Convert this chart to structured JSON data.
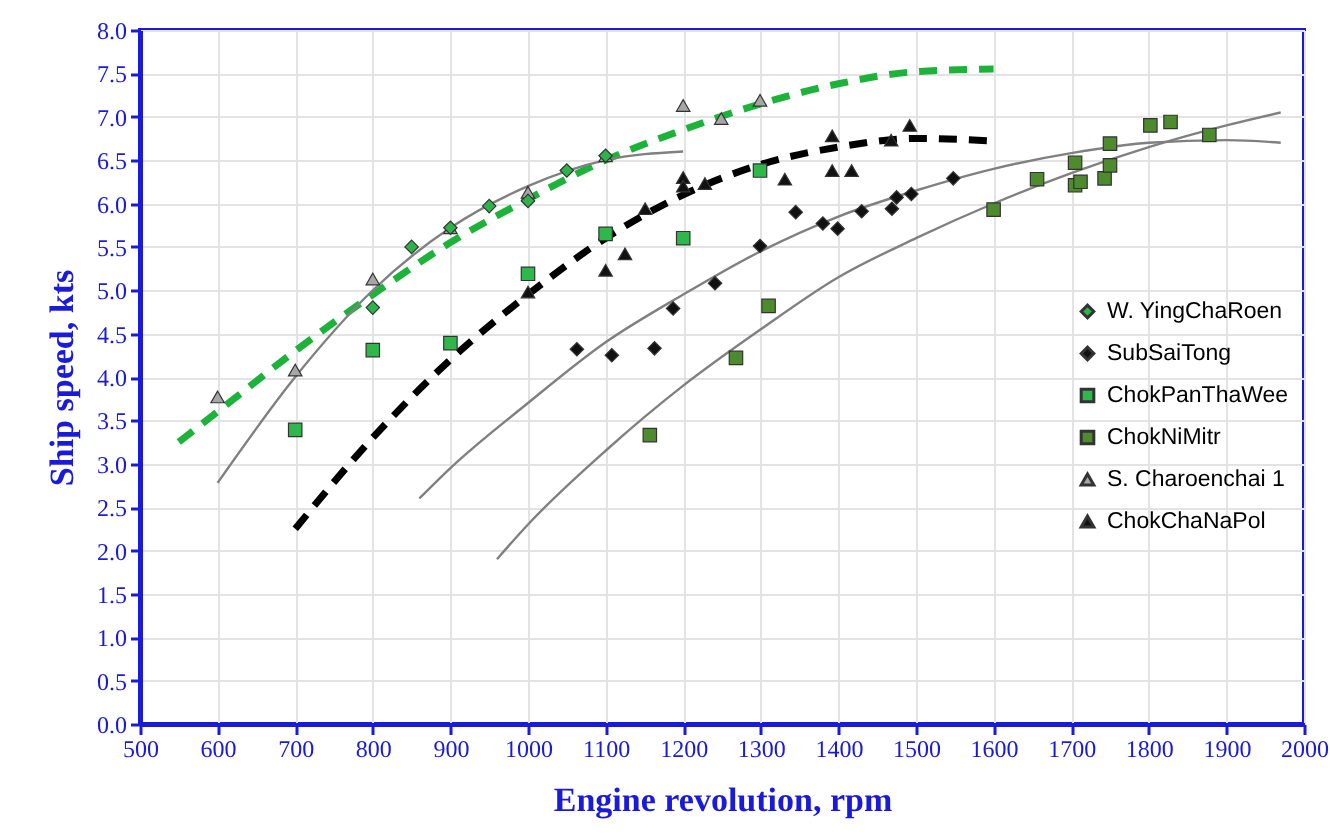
{
  "chart_data": {
    "type": "scatter",
    "xlabel": "Engine revolution, rpm",
    "ylabel": "Ship speed, kts",
    "xlim": [
      500,
      2000
    ],
    "xticks": [
      500,
      600,
      700,
      800,
      900,
      1000,
      1100,
      1200,
      1300,
      1400,
      1500,
      1600,
      1700,
      1800,
      1900,
      2000
    ],
    "ylim": [
      0,
      8
    ],
    "yticks": [
      {
        "value": 0,
        "label": "0.0"
      },
      {
        "value": 0.5,
        "label": "0.5"
      },
      {
        "value": 1,
        "label": "1.0"
      },
      {
        "value": 1.5,
        "label": "1.5"
      },
      {
        "value": 2,
        "label": "2.0"
      },
      {
        "value": 2.5,
        "label": "2.5"
      },
      {
        "value": 3,
        "label": "3.0"
      },
      {
        "value": 3.5,
        "label": "3.5"
      },
      {
        "value": 4,
        "label": "4.0"
      },
      {
        "value": 4.5,
        "label": "4.5"
      },
      {
        "value": 5,
        "label": "5.0"
      },
      {
        "value": 5.5,
        "label": "5.5"
      },
      {
        "value": 6,
        "label": "6.0"
      },
      {
        "value": 6.5,
        "label": "6.5"
      },
      {
        "value": 7,
        "label": "7.0"
      },
      {
        "value": 7.5,
        "label": "7.5"
      },
      {
        "value": 8,
        "label": "8.0"
      }
    ],
    "grid": true,
    "legend": "right",
    "series": [
      {
        "name": "W. YingChaRoen",
        "type": "scatter",
        "marker": "diamond",
        "color": "#2db34a",
        "x": [
          800,
          850,
          900,
          950,
          1000,
          1050,
          1100
        ],
        "values": [
          4.8,
          5.5,
          5.72,
          5.97,
          6.03,
          6.38,
          6.55
        ]
      },
      {
        "name": "SubSaiTong",
        "type": "scatter",
        "marker": "diamond",
        "color": "#111111",
        "x": [
          1063,
          1108,
          1163,
          1187,
          1241,
          1299,
          1345,
          1380,
          1399,
          1430,
          1469,
          1475,
          1494,
          1548
        ],
        "values": [
          4.32,
          4.25,
          4.33,
          4.79,
          5.08,
          5.51,
          5.9,
          5.77,
          5.71,
          5.91,
          5.94,
          6.07,
          6.11,
          6.29
        ]
      },
      {
        "name": "ChokPanThaWee",
        "type": "scatter",
        "marker": "square",
        "color": "#2eb84b",
        "x": [
          700,
          800,
          900,
          1000,
          1100,
          1200,
          1299
        ],
        "values": [
          3.39,
          4.31,
          4.39,
          5.19,
          5.65,
          5.6,
          6.38
        ]
      },
      {
        "name": "ChokNiMitr",
        "type": "scatter",
        "marker": "square",
        "color": "#4e8a2e",
        "x": [
          1157,
          1268,
          1310,
          1600,
          1656,
          1705,
          1705,
          1712,
          1743,
          1750,
          1750,
          1802,
          1828,
          1878
        ],
        "values": [
          3.33,
          4.22,
          4.82,
          5.93,
          6.28,
          6.47,
          6.21,
          6.25,
          6.29,
          6.44,
          6.69,
          6.9,
          6.94,
          6.79
        ]
      },
      {
        "name": "S. Charoenchai 1",
        "type": "scatter",
        "marker": "triangle",
        "color": "#a6a6a6",
        "x": [
          600,
          700,
          800,
          900,
          1000,
          1100,
          1200,
          1249,
          1299
        ],
        "values": [
          3.77,
          4.08,
          5.13,
          5.72,
          6.13,
          6.55,
          7.13,
          6.98,
          7.19
        ]
      },
      {
        "name": "ChokChaNaPol",
        "type": "scatter",
        "marker": "triangle",
        "color": "#111111",
        "x": [
          1000,
          1100,
          1125,
          1151,
          1200,
          1200,
          1228,
          1331,
          1392,
          1392,
          1417,
          1468,
          1492
        ],
        "values": [
          4.98,
          5.23,
          5.42,
          5.94,
          6.3,
          6.2,
          6.23,
          6.28,
          6.78,
          6.38,
          6.38,
          6.73,
          6.9
        ]
      },
      {
        "type": "line",
        "color": "#1db33a",
        "line_style": "dashed",
        "x": [
          550,
          600,
          700,
          800,
          900,
          1000,
          1100,
          1200,
          1300,
          1400,
          1500,
          1600
        ],
        "values": [
          3.25,
          3.6,
          4.3,
          4.95,
          5.55,
          6.05,
          6.5,
          6.85,
          7.15,
          7.38,
          7.52,
          7.55
        ]
      },
      {
        "type": "line",
        "color": "#000000",
        "line_style": "dashed",
        "x": [
          700,
          800,
          900,
          1000,
          1100,
          1200,
          1300,
          1400,
          1500,
          1600
        ],
        "values": [
          2.25,
          3.3,
          4.2,
          4.95,
          5.6,
          6.1,
          6.45,
          6.65,
          6.75,
          6.72
        ]
      },
      {
        "type": "line",
        "color": "#808080",
        "line_style": "solid",
        "x": [
          600,
          700,
          800,
          900,
          1000,
          1100,
          1200
        ],
        "values": [
          2.78,
          4.0,
          5.0,
          5.72,
          6.2,
          6.5,
          6.6
        ]
      },
      {
        "type": "line",
        "color": "#808080",
        "line_style": "solid",
        "x": [
          860,
          900,
          1000,
          1100,
          1200,
          1300,
          1400,
          1500,
          1600,
          1700,
          1800,
          1900,
          1970
        ],
        "values": [
          2.6,
          2.95,
          3.7,
          4.4,
          4.95,
          5.45,
          5.85,
          6.15,
          6.4,
          6.58,
          6.7,
          6.73,
          6.7
        ]
      },
      {
        "type": "line",
        "color": "#808080",
        "line_style": "solid",
        "x": [
          960,
          1000,
          1100,
          1200,
          1300,
          1400,
          1500,
          1600,
          1700,
          1800,
          1900,
          1970
        ],
        "values": [
          1.9,
          2.3,
          3.15,
          3.9,
          4.55,
          5.15,
          5.6,
          6.0,
          6.35,
          6.65,
          6.9,
          7.05
        ]
      }
    ]
  }
}
